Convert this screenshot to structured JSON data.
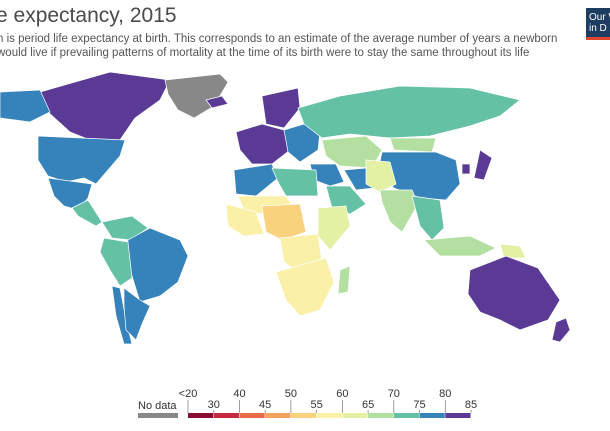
{
  "header": {
    "title": "e expectancy, 2015",
    "subtitle_line1": "n is period life expectancy at birth. This corresponds to an estimate of the average number of years a newborn",
    "subtitle_line2": "would live if prevailing patterns of mortality at the time of its birth were to stay the same throughout its life"
  },
  "logo": {
    "line1": "Our W",
    "line2": "in D"
  },
  "legend": {
    "no_data_label": "No data",
    "no_data_color": "#888888",
    "bins": [
      {
        "from_label": "<20",
        "to_label": "30",
        "color": "#8a0d33"
      },
      {
        "from_label": "30",
        "to_label": "40",
        "color": "#c72a3f"
      },
      {
        "from_label": "40",
        "to_label": "45",
        "color": "#e86a47"
      },
      {
        "from_label": "45",
        "to_label": "50",
        "color": "#f4a35c"
      },
      {
        "from_label": "50",
        "to_label": "55",
        "color": "#f8d27c"
      },
      {
        "from_label": "55",
        "to_label": "60",
        "color": "#fbf0a8"
      },
      {
        "from_label": "60",
        "to_label": "65",
        "color": "#e3f1a4"
      },
      {
        "from_label": "65",
        "to_label": "70",
        "color": "#b3dfa1"
      },
      {
        "from_label": "70",
        "to_label": "75",
        "color": "#65c1a6"
      },
      {
        "from_label": "75",
        "to_label": "80",
        "color": "#3683bb"
      },
      {
        "from_label": "80",
        "to_label": "85",
        "color": "#5a3a95"
      }
    ],
    "tick_labels": [
      "<20",
      "30",
      "40",
      "45",
      "50",
      "55",
      "60",
      "65",
      "70",
      "75",
      "80",
      "85"
    ]
  },
  "regions": [
    {
      "name": "Canada",
      "range": "80-85",
      "color": "#5a3a95"
    },
    {
      "name": "Alaska",
      "range": "75-80",
      "color": "#3683bb"
    },
    {
      "name": "Greenland",
      "range": "No data",
      "color": "#888888"
    },
    {
      "name": "United States",
      "range": "75-80",
      "color": "#3683bb"
    },
    {
      "name": "Mexico",
      "range": "75-80",
      "color": "#3683bb"
    },
    {
      "name": "Central America",
      "range": "70-75",
      "color": "#65c1a6"
    },
    {
      "name": "Colombia / Venezuela",
      "range": "70-75",
      "color": "#65c1a6"
    },
    {
      "name": "Brazil",
      "range": "75-80",
      "color": "#3683bb"
    },
    {
      "name": "Peru / Bolivia",
      "range": "70-75",
      "color": "#65c1a6"
    },
    {
      "name": "Chile",
      "range": "75-80",
      "color": "#3683bb"
    },
    {
      "name": "Argentina",
      "range": "75-80",
      "color": "#3683bb"
    },
    {
      "name": "Iceland",
      "range": "80-85",
      "color": "#5a3a95"
    },
    {
      "name": "Scandinavia",
      "range": "80-85",
      "color": "#5a3a95"
    },
    {
      "name": "Western Europe",
      "range": "80-85",
      "color": "#5a3a95"
    },
    {
      "name": "Eastern Europe",
      "range": "75-80",
      "color": "#3683bb"
    },
    {
      "name": "Russia",
      "range": "70-75",
      "color": "#65c1a6"
    },
    {
      "name": "Kazakhstan / Central Asia",
      "range": "65-70",
      "color": "#b3dfa1"
    },
    {
      "name": "Mongolia",
      "range": "65-70",
      "color": "#b3dfa1"
    },
    {
      "name": "China",
      "range": "75-80",
      "color": "#3683bb"
    },
    {
      "name": "Japan",
      "range": "80-85",
      "color": "#5a3a95"
    },
    {
      "name": "Korea",
      "range": "80-85",
      "color": "#5a3a95"
    },
    {
      "name": "Middle East",
      "range": "75-80",
      "color": "#3683bb"
    },
    {
      "name": "Arabian Peninsula",
      "range": "70-75",
      "color": "#65c1a6"
    },
    {
      "name": "Iran",
      "range": "75-80",
      "color": "#3683bb"
    },
    {
      "name": "Afghanistan / Pakistan",
      "range": "60-65",
      "color": "#e3f1a4"
    },
    {
      "name": "India",
      "range": "65-70",
      "color": "#b3dfa1"
    },
    {
      "name": "Southeast Asia",
      "range": "70-75",
      "color": "#65c1a6"
    },
    {
      "name": "Indonesia",
      "range": "65-70",
      "color": "#b3dfa1"
    },
    {
      "name": "Papua New Guinea",
      "range": "60-65",
      "color": "#e3f1a4"
    },
    {
      "name": "Australia",
      "range": "80-85",
      "color": "#5a3a95"
    },
    {
      "name": "New Zealand",
      "range": "80-85",
      "color": "#5a3a95"
    },
    {
      "name": "North Africa",
      "range": "75-80",
      "color": "#3683bb"
    },
    {
      "name": "Libya / Egypt",
      "range": "70-75",
      "color": "#65c1a6"
    },
    {
      "name": "Sahel",
      "range": "55-60",
      "color": "#fbf0a8"
    },
    {
      "name": "West Africa",
      "range": "55-60",
      "color": "#fbf0a8"
    },
    {
      "name": "Nigeria / Chad",
      "range": "50-55",
      "color": "#f8d27c"
    },
    {
      "name": "Central Africa",
      "range": "55-60",
      "color": "#fbf0a8"
    },
    {
      "name": "East Africa",
      "range": "60-65",
      "color": "#e3f1a4"
    },
    {
      "name": "Southern Africa",
      "range": "55-60",
      "color": "#fbf0a8"
    },
    {
      "name": "Madagascar",
      "range": "65-70",
      "color": "#b3dfa1"
    }
  ]
}
